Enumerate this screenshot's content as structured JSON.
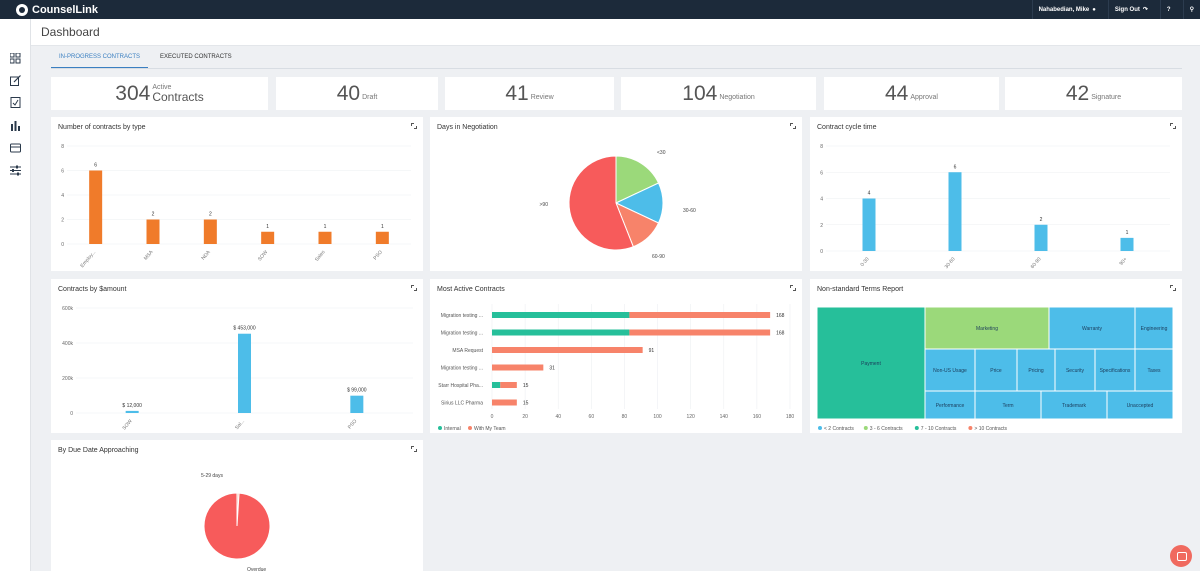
{
  "app": {
    "name": "CounselLink",
    "user": "Nahabedian, Mike",
    "signout": "Sign Out",
    "help": "?"
  },
  "page": {
    "title": "Dashboard"
  },
  "tabs": [
    {
      "label": "IN-PROGRESS CONTRACTS",
      "active": true
    },
    {
      "label": "EXECUTED CONTRACTS",
      "active": false
    }
  ],
  "stats": [
    {
      "value": "304",
      "label_top": "Active",
      "label": "Contracts"
    },
    {
      "value": "40",
      "label": "Draft"
    },
    {
      "value": "41",
      "label": "Review"
    },
    {
      "value": "104",
      "label": "Negotiation"
    },
    {
      "value": "44",
      "label": "Approval"
    },
    {
      "value": "42",
      "label": "Signature"
    }
  ],
  "panels": {
    "by_type": "Number of contracts by type",
    "days_neg": "Days in Negotiation",
    "cycle": "Contract cycle time",
    "amount": "Contracts by $amount",
    "most_active": "Most Active Contracts",
    "nonstd": "Non-standard Terms Report",
    "due": "By Due Date Approaching"
  },
  "chart_data": [
    {
      "id": "by_type",
      "type": "bar",
      "categories": [
        "Employ...",
        "MSA",
        "NDA",
        "SOW",
        "Sales",
        "PSO"
      ],
      "values": [
        6,
        2,
        2,
        1,
        1,
        1
      ],
      "ylim": [
        0,
        8
      ],
      "yticks": [
        0,
        2,
        4,
        6,
        8
      ],
      "color": "#f07b2a"
    },
    {
      "id": "days_neg",
      "type": "pie",
      "slices": [
        {
          "label": "<30",
          "value": 18,
          "color": "#9bd97a"
        },
        {
          "label": "30-60",
          "value": 14,
          "color": "#4dbde9"
        },
        {
          "label": ">60-90",
          "display": "60-90",
          "value": 12,
          "color": "#f7836a"
        },
        {
          "label": ">90",
          "value": 56,
          "color": "#f75b5b"
        }
      ]
    },
    {
      "id": "cycle",
      "type": "bar",
      "categories": [
        "0-30",
        "30-60",
        "60-90",
        "90+"
      ],
      "values": [
        4,
        6,
        2,
        1
      ],
      "ylim": [
        0,
        8
      ],
      "yticks": [
        0,
        2,
        4,
        6,
        8
      ],
      "color": "#4dbde9"
    },
    {
      "id": "amount",
      "type": "bar",
      "categories": [
        "SOW",
        "Sal...",
        "PSO"
      ],
      "values": [
        12000,
        453000,
        99000
      ],
      "labels": [
        "$ 12,000",
        "$ 453,000",
        "$ 99,000"
      ],
      "ylim": [
        0,
        600000
      ],
      "yticks": [
        0,
        200000,
        400000,
        600000
      ],
      "ytick_labels": [
        "0",
        "200k",
        "400k",
        "600k"
      ],
      "color": "#4dbde9"
    },
    {
      "id": "most_active",
      "type": "bar",
      "orientation": "horizontal",
      "categories": [
        "Migration testing ...",
        "Migration testing ...",
        "MSA Request",
        "Migration testing ...",
        "Starr Hospital Pha...",
        "Sirius LLC Pharma"
      ],
      "series": [
        {
          "name": "Internal",
          "values": [
            83,
            83,
            0,
            0,
            5,
            0
          ],
          "color": "#26bf9a"
        },
        {
          "name": "With My Team",
          "values": [
            85,
            85,
            91,
            31,
            10,
            15
          ],
          "color": "#f7836a"
        }
      ],
      "totals": [
        168,
        168,
        91,
        31,
        15,
        15
      ],
      "xlim": [
        0,
        180
      ],
      "xticks": [
        0,
        20,
        40,
        60,
        80,
        100,
        120,
        140,
        160,
        180
      ]
    },
    {
      "id": "nonstd",
      "type": "treemap",
      "cells": [
        {
          "label": "Payment",
          "color": "#26bf9a"
        },
        {
          "label": "Marketing",
          "color": "#9bd97a"
        },
        {
          "label": "Warranty",
          "color": "#4dbde9"
        },
        {
          "label": "Engineering",
          "color": "#4dbde9"
        },
        {
          "label": "Non-US Usage",
          "color": "#4dbde9"
        },
        {
          "label": "Price",
          "color": "#4dbde9"
        },
        {
          "label": "Pricing",
          "color": "#4dbde9"
        },
        {
          "label": "Security",
          "color": "#4dbde9"
        },
        {
          "label": "Specifications",
          "color": "#4dbde9"
        },
        {
          "label": "Taxes",
          "color": "#4dbde9"
        },
        {
          "label": "Performance",
          "color": "#4dbde9"
        },
        {
          "label": "Term",
          "color": "#4dbde9"
        },
        {
          "label": "Trademark",
          "color": "#4dbde9"
        },
        {
          "label": "Unaccepted",
          "color": "#4dbde9"
        }
      ],
      "legend": [
        {
          "label": "< 2 Contracts",
          "color": "#4dbde9"
        },
        {
          "label": "3 - 6 Contracts",
          "color": "#9bd97a"
        },
        {
          "label": "7 - 10 Contracts",
          "color": "#26bf9a"
        },
        {
          "label": "> 10 Contracts",
          "color": "#f7836a"
        }
      ]
    },
    {
      "id": "due",
      "type": "pie",
      "slices": [
        {
          "label": "5-29 days",
          "value": 1,
          "color": "#f7c3b0"
        },
        {
          "label": "Overdue",
          "value": 99,
          "color": "#f75b5b"
        }
      ]
    }
  ]
}
